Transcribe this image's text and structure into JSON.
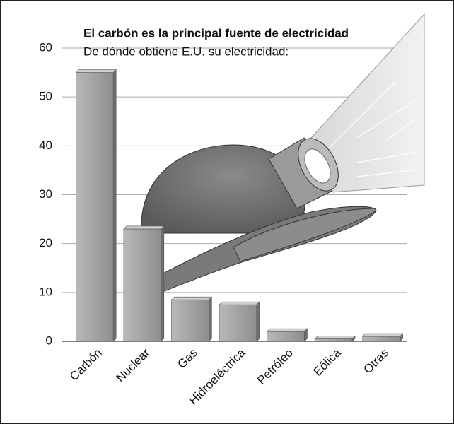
{
  "chart_data": {
    "type": "bar",
    "title": "El carbón es la principal fuente de electricidad",
    "subtitle": "De dónde obtiene E.U. su electricidad:",
    "categories": [
      "Carbón",
      "Nuclear",
      "Gas",
      "Hidroeléctrica",
      "Petróleo",
      "Eólica",
      "Otras"
    ],
    "values": [
      55,
      23,
      8.5,
      7.5,
      2,
      0.5,
      1
    ],
    "color": "#9a9a9a",
    "ylim": [
      0,
      60
    ],
    "yticks": [
      0,
      10,
      20,
      30,
      40,
      50,
      60
    ],
    "grid": true
  }
}
